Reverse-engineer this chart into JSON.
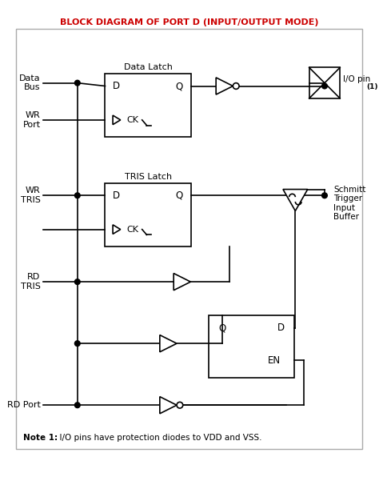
{
  "title": "BLOCK DIAGRAM OF PORT D (INPUT/OUTPUT MODE)",
  "title_color": "#cc0000",
  "background_color": "#ffffff",
  "line_color": "#000000",
  "fig_width": 4.74,
  "fig_height": 6.06,
  "note_bold": "Note 1:",
  "note_rest": "  I/O pins have protection diodes to VDD and VSS.",
  "data_latch_label": "Data Latch",
  "tris_latch_label": "TRIS Latch",
  "io_pin_label": "I/O pin",
  "io_pin_sup": "(1)",
  "schmitt_lines": [
    "Schmitt",
    "Trigger",
    "Input",
    "Buffer"
  ],
  "label_data_bus": "Data\nBus",
  "label_wr_port": "WR\nPort",
  "label_wr_tris": "WR\nTRIS",
  "label_rd_tris": "RD\nTRIS",
  "label_rd_port": "RD Port"
}
